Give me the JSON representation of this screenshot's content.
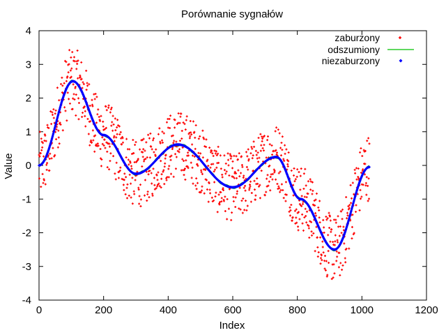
{
  "chart_data": {
    "type": "scatter",
    "title": "Porównanie sygnałów",
    "xlabel": "Index",
    "ylabel": "Value",
    "xlim": [
      0,
      1200
    ],
    "ylim": [
      -4,
      4
    ],
    "x_ticks": [
      0,
      200,
      400,
      600,
      800,
      1000,
      1200
    ],
    "y_ticks": [
      -4,
      -3,
      -2,
      -1,
      0,
      1,
      2,
      3,
      4
    ],
    "grid": false,
    "legend_position": "top-right",
    "n_points": 1024,
    "signal_description": "x from 0 to 1023; the clean signal is a sum of sinusoids; noisy series adds random noise of amplitude about 1",
    "clean_signal_keypoints": [
      {
        "x": 0,
        "y": 0.0
      },
      {
        "x": 105,
        "y": 2.5
      },
      {
        "x": 200,
        "y": 0.9
      },
      {
        "x": 300,
        "y": -0.25
      },
      {
        "x": 430,
        "y": 0.62
      },
      {
        "x": 600,
        "y": -0.65
      },
      {
        "x": 735,
        "y": 0.25
      },
      {
        "x": 810,
        "y": -1.0
      },
      {
        "x": 915,
        "y": -2.5
      },
      {
        "x": 1023,
        "y": -0.05
      }
    ],
    "noise_amplitude": 1.0,
    "series": [
      {
        "name": "zaburzony",
        "style": "points",
        "color": "#ff0000"
      },
      {
        "name": "odszumiony",
        "style": "line",
        "color": "#00c000"
      },
      {
        "name": "niezaburzony",
        "style": "points",
        "color": "#0000ff"
      }
    ]
  }
}
